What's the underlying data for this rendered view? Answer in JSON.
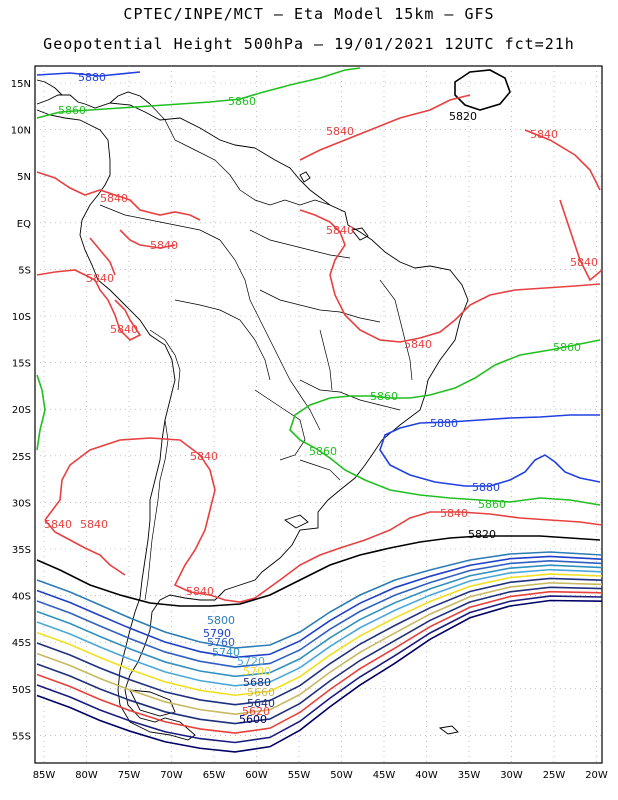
{
  "title": {
    "line1": "CPTEC/INPE/MCT –  Eta Model 15km – GFS",
    "line2": "Geopotential Height 500hPa – 19/01/2021 12UTC fct=21h"
  },
  "axes": {
    "lat_labels": [
      "15N",
      "10N",
      "5N",
      "EQ",
      "5S",
      "10S",
      "15S",
      "20S",
      "25S",
      "30S",
      "35S",
      "40S",
      "45S",
      "50S",
      "55S"
    ],
    "lon_labels": [
      "85W",
      "80W",
      "75W",
      "70W",
      "65W",
      "60W",
      "55W",
      "50W",
      "45W",
      "40W",
      "35W",
      "30W",
      "25W",
      "20W"
    ]
  },
  "colors": {
    "c5520": "#000066",
    "c5580": "#1a1a80",
    "c5620": "#e8403a",
    "c5640": "#1f2f7a",
    "c5660": "#c8b860",
    "c5680": "#203080",
    "c5700": "#f0e020",
    "c5720": "#4aa8d8",
    "c5740": "#3090c0",
    "c5760": "#3060c0",
    "c5790": "#2040c8",
    "c5800": "#2c7cb8",
    "c5820": "#000000",
    "c5840": "#e84040",
    "c5860": "#20c020",
    "c5880": "#2040e0"
  },
  "labels": {
    "l5880a": "5880",
    "l5860a": "5860",
    "l5860b": "5860",
    "l5820a": "5820",
    "l5840a": "5840",
    "l5840b": "5840",
    "l5840c": "5840",
    "l5840d": "5840",
    "l5840e": "5840",
    "l5840f": "5840",
    "l5840g": "5840",
    "l5840h": "5840",
    "l5840i": "5840",
    "l5840j": "5840",
    "l5840k": "5840",
    "l5840l": "5840",
    "l5840m": "5840",
    "l5840n": "5840",
    "l5860c": "5860",
    "l5860d": "5860",
    "l5860e": "5860",
    "l5860f": "5860",
    "l5880b": "5880",
    "l5880c": "5880",
    "l5820b": "5820",
    "l5800": "5800",
    "l5790": "5790",
    "l5760": "5760",
    "l5740": "5740",
    "l5720": "5720",
    "l5700": "5700",
    "l5680": "5680",
    "l5660": "5660",
    "l5640": "5640",
    "l5620": "5620",
    "l5600": "5600"
  }
}
